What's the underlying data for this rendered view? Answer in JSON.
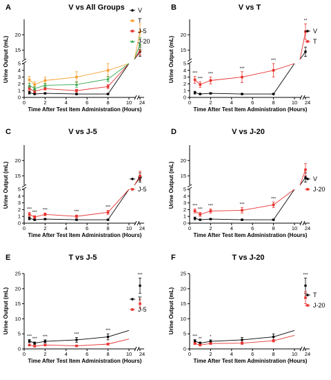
{
  "chart_data": [
    {
      "panel": "A",
      "type": "line",
      "title": "V vs All Groups",
      "xlabel": "Time After Test Item Administration (Hours)",
      "ylabel": "Urine Output (mL)",
      "x_ticks_lower": [
        "0",
        "2",
        "4",
        "6",
        "8",
        "10"
      ],
      "x_tick_upper": "24",
      "y_ticks_lower": [
        "0",
        "1",
        "2",
        "3",
        "4",
        "5"
      ],
      "y_ticks_upper": [
        "15",
        "20"
      ],
      "ylim_lower": [
        0,
        5
      ],
      "ylim_upper": [
        12,
        25
      ],
      "x": [
        0.5,
        1,
        2,
        5,
        8,
        24
      ],
      "series": [
        {
          "name": "V",
          "color": "#000000",
          "marker": "circle",
          "values": [
            0.7,
            0.5,
            0.6,
            0.5,
            0.5,
            14.5
          ],
          "errors": [
            0.2,
            0.1,
            0.1,
            0.1,
            0.1,
            1.5
          ]
        },
        {
          "name": "T",
          "color": "#f5a031",
          "marker": "square",
          "values": [
            2.6,
            1.9,
            2.5,
            3.0,
            4.0,
            21.0
          ],
          "errors": [
            0.5,
            0.4,
            0.5,
            0.8,
            1.0,
            2.5
          ]
        },
        {
          "name": "J-5",
          "color": "#e8312d",
          "marker": "square",
          "values": [
            1.3,
            0.9,
            1.3,
            1.0,
            1.6,
            15.0
          ],
          "errors": [
            0.3,
            0.2,
            0.2,
            0.2,
            0.3,
            1.5
          ]
        },
        {
          "name": "J-20",
          "color": "#2fa84f",
          "marker": "triangle",
          "values": [
            1.8,
            1.3,
            1.8,
            1.9,
            2.7,
            17.0
          ],
          "errors": [
            0.3,
            0.3,
            0.3,
            0.4,
            0.4,
            2.0
          ]
        }
      ],
      "annotations": []
    },
    {
      "panel": "B",
      "type": "line",
      "title": "V vs T",
      "xlabel": "Time After Test Item Administration (Hours)",
      "ylabel": "Urine Output (mL)",
      "x_ticks_lower": [
        "0",
        "2",
        "4",
        "6",
        "8",
        "10"
      ],
      "x_tick_upper": "24",
      "y_ticks_lower": [
        "0",
        "1",
        "2",
        "3",
        "4",
        "5"
      ],
      "y_ticks_upper": [
        "15",
        "20"
      ],
      "ylim_lower": [
        0,
        5
      ],
      "ylim_upper": [
        12,
        25
      ],
      "x": [
        0.5,
        1,
        2,
        5,
        8,
        24
      ],
      "series": [
        {
          "name": "V",
          "color": "#000000",
          "marker": "circle",
          "values": [
            0.7,
            0.5,
            0.6,
            0.5,
            0.5,
            14.5
          ],
          "errors": [
            0.2,
            0.1,
            0.1,
            0.1,
            0.1,
            1.5
          ]
        },
        {
          "name": "T",
          "color": "#e8312d",
          "marker": "square",
          "values": [
            2.6,
            1.9,
            2.5,
            3.0,
            4.0,
            21.0
          ],
          "errors": [
            0.5,
            0.4,
            0.5,
            0.8,
            1.0,
            2.5
          ]
        }
      ],
      "annotations": [
        "***",
        "***",
        "***",
        "***",
        "***",
        "**"
      ]
    },
    {
      "panel": "C",
      "type": "line",
      "title": "V vs J-5",
      "xlabel": "Time After Test Item Administration (Hours)",
      "ylabel": "Urine Output (mL)",
      "x_ticks_lower": [
        "0",
        "2",
        "4",
        "6",
        "8",
        "10"
      ],
      "x_tick_upper": "24",
      "y_ticks_lower": [
        "0",
        "1",
        "2",
        "3",
        "4",
        "5"
      ],
      "y_ticks_upper": [
        "15",
        "20"
      ],
      "ylim_lower": [
        0,
        5
      ],
      "ylim_upper": [
        12,
        25
      ],
      "x": [
        0.5,
        1,
        2,
        5,
        8,
        24
      ],
      "series": [
        {
          "name": "V",
          "color": "#000000",
          "marker": "circle",
          "values": [
            0.7,
            0.5,
            0.6,
            0.5,
            0.5,
            14.5
          ],
          "errors": [
            0.2,
            0.1,
            0.1,
            0.1,
            0.1,
            1.5
          ]
        },
        {
          "name": "J-5",
          "color": "#e8312d",
          "marker": "square",
          "values": [
            1.3,
            0.9,
            1.3,
            1.0,
            1.6,
            15.0
          ],
          "errors": [
            0.3,
            0.2,
            0.2,
            0.2,
            0.3,
            1.5
          ]
        }
      ],
      "annotations": [
        "***",
        "***",
        "***",
        "***",
        "***",
        ""
      ]
    },
    {
      "panel": "D",
      "type": "line",
      "title": "V vs J-20",
      "xlabel": "Time After Test Item Administration (Hours)",
      "ylabel": "Urine Output (mL)",
      "x_ticks_lower": [
        "0",
        "2",
        "4",
        "6",
        "8",
        "10"
      ],
      "x_tick_upper": "24",
      "y_ticks_lower": [
        "0",
        "1",
        "2",
        "3",
        "4",
        "5"
      ],
      "y_ticks_upper": [
        "15",
        "20"
      ],
      "ylim_lower": [
        0,
        5
      ],
      "ylim_upper": [
        12,
        25
      ],
      "x": [
        0.5,
        1,
        2,
        5,
        8,
        24
      ],
      "series": [
        {
          "name": "V",
          "color": "#000000",
          "marker": "circle",
          "values": [
            0.7,
            0.5,
            0.6,
            0.5,
            0.5,
            14.5
          ],
          "errors": [
            0.2,
            0.1,
            0.1,
            0.1,
            0.1,
            1.5
          ]
        },
        {
          "name": "J-20",
          "color": "#e8312d",
          "marker": "square",
          "values": [
            1.8,
            1.3,
            1.8,
            1.9,
            2.7,
            17.0
          ],
          "errors": [
            0.3,
            0.3,
            0.3,
            0.4,
            0.4,
            2.0
          ]
        }
      ],
      "annotations": [
        "***",
        "***",
        "***",
        "***",
        "***",
        ""
      ]
    },
    {
      "panel": "E",
      "type": "line",
      "title": "T vs J-5",
      "xlabel": "Time After Test Item Administration (Hours)",
      "ylabel": "Urine Output (mL)",
      "x_ticks_lower": [
        "0",
        "2",
        "4",
        "6",
        "8",
        "10"
      ],
      "x_tick_upper": "24",
      "y_ticks": [
        "0",
        "5",
        "10",
        "15",
        "20",
        "25"
      ],
      "ylim": [
        0,
        25
      ],
      "x": [
        0.5,
        1,
        2,
        5,
        8,
        24
      ],
      "series": [
        {
          "name": "T",
          "color": "#000000",
          "marker": "circle",
          "values": [
            2.6,
            1.9,
            2.5,
            3.0,
            4.0,
            21.0
          ],
          "errors": [
            0.5,
            0.4,
            0.5,
            0.8,
            1.0,
            2.5
          ]
        },
        {
          "name": "J-5",
          "color": "#e8312d",
          "marker": "square",
          "values": [
            1.3,
            0.9,
            1.3,
            1.0,
            1.6,
            15.0
          ],
          "errors": [
            0.3,
            0.2,
            0.2,
            0.2,
            0.3,
            1.5
          ]
        }
      ],
      "annotations": [
        "***",
        "***",
        "***",
        "***",
        "***",
        "***"
      ]
    },
    {
      "panel": "F",
      "type": "line",
      "title": "T vs J-20",
      "xlabel": "Time After Test Item Administration (Hours)",
      "ylabel": "Urine Output (mL)",
      "x_ticks_lower": [
        "0",
        "2",
        "4",
        "6",
        "8",
        "10"
      ],
      "x_tick_upper": "24",
      "y_ticks": [
        "0",
        "5",
        "10",
        "15",
        "20",
        "25"
      ],
      "ylim": [
        0,
        25
      ],
      "x": [
        0.5,
        1,
        2,
        5,
        8,
        24
      ],
      "series": [
        {
          "name": "T",
          "color": "#000000",
          "marker": "circle",
          "values": [
            2.6,
            1.9,
            2.5,
            3.0,
            4.0,
            21.0
          ],
          "errors": [
            0.5,
            0.4,
            0.5,
            0.8,
            1.0,
            2.5
          ]
        },
        {
          "name": "J-20",
          "color": "#e8312d",
          "marker": "square",
          "values": [
            1.8,
            1.3,
            1.8,
            1.9,
            2.7,
            17.0
          ],
          "errors": [
            0.3,
            0.3,
            0.3,
            0.4,
            0.4,
            2.0
          ]
        }
      ],
      "annotations": [
        "***",
        "**",
        "*",
        "",
        "",
        "***"
      ]
    }
  ]
}
